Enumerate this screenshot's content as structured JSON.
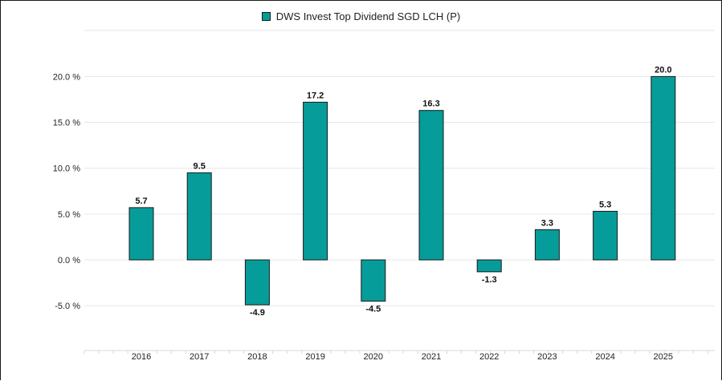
{
  "legend": {
    "label": "DWS Invest Top Dividend SGD LCH (P)"
  },
  "colors": {
    "bar": "#069c9a",
    "bar_stroke": "#1a1a1a",
    "grid": "#e6e6e6"
  },
  "chart_data": {
    "type": "bar",
    "categories": [
      "2016",
      "2017",
      "2018",
      "2019",
      "2020",
      "2021",
      "2022",
      "2023",
      "2024",
      "2025"
    ],
    "series": [
      {
        "name": "DWS Invest Top Dividend SGD LCH (P)",
        "values": [
          5.7,
          9.5,
          -4.9,
          17.2,
          -4.5,
          16.3,
          -1.3,
          3.3,
          5.3,
          20.0
        ]
      }
    ],
    "data_labels": [
      "5.7",
      "9.5",
      "-4.9",
      "17.2",
      "-4.5",
      "16.3",
      "-1.3",
      "3.3",
      "5.3",
      "20.0"
    ],
    "y_ticks": [
      -5,
      0,
      5,
      10,
      15,
      20
    ],
    "y_tick_labels": [
      "-5.0 %",
      "0.0 %",
      "5.0 %",
      "10.0 %",
      "15.0 %",
      "20.0 %"
    ],
    "ylim": [
      -10,
      25
    ],
    "grid": true,
    "legend_position": "top-center"
  }
}
